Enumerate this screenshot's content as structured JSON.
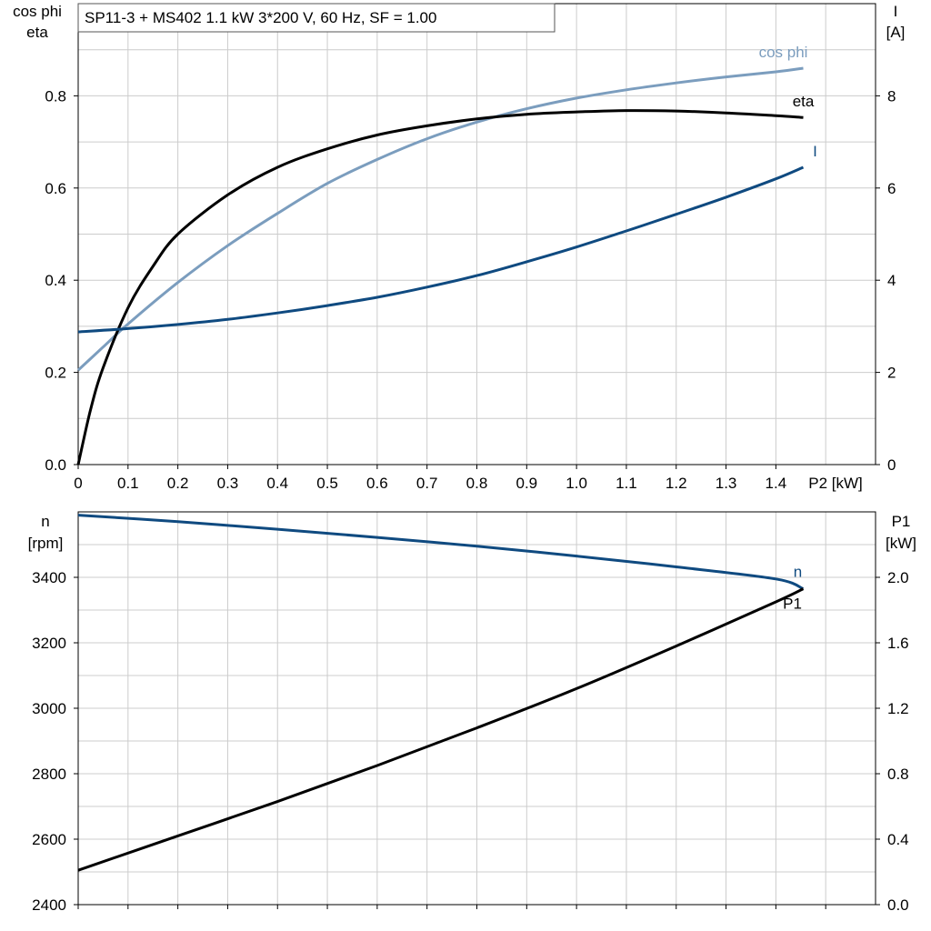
{
  "header": {
    "title": "SP11-3 + MS402   1.1 kW   3*200 V, 60 Hz, SF = 1.00"
  },
  "colors": {
    "eta": "#000000",
    "cos_phi": "#7b9dbe",
    "current": "#0f4a80",
    "speed": "#0f4a80",
    "p1": "#000000",
    "grid": "#cccccc"
  },
  "chart_data": [
    {
      "type": "line",
      "title": "",
      "xlabel": "P2 [kW]",
      "xlim": [
        0,
        1.6
      ],
      "x_ticks": [
        "0",
        "0.1",
        "0.2",
        "0.3",
        "0.4",
        "0.5",
        "0.6",
        "0.7",
        "0.8",
        "0.9",
        "1.0",
        "1.1",
        "1.2",
        "1.3",
        "1.4"
      ],
      "y_left": {
        "label_line1": "cos phi",
        "label_line2": "eta",
        "ylim": [
          0,
          1.0
        ],
        "ticks": [
          "0.0",
          "0.2",
          "0.4",
          "0.6",
          "0.8"
        ]
      },
      "y_right": {
        "label_line1": "I",
        "label_line2": "[A]",
        "ylim": [
          0,
          10
        ],
        "ticks": [
          "0",
          "2",
          "4",
          "6",
          "8"
        ]
      },
      "grid": true,
      "series": [
        {
          "name": "cos phi",
          "axis": "left",
          "x": [
            0,
            0.05,
            0.1,
            0.2,
            0.3,
            0.4,
            0.5,
            0.6,
            0.7,
            0.8,
            0.9,
            1.0,
            1.1,
            1.2,
            1.3,
            1.4,
            1.455
          ],
          "y": [
            0.205,
            0.255,
            0.305,
            0.395,
            0.475,
            0.545,
            0.61,
            0.662,
            0.707,
            0.743,
            0.772,
            0.795,
            0.813,
            0.828,
            0.841,
            0.852,
            0.86
          ]
        },
        {
          "name": "eta",
          "axis": "left",
          "x": [
            0,
            0.025,
            0.05,
            0.1,
            0.15,
            0.2,
            0.3,
            0.4,
            0.5,
            0.6,
            0.7,
            0.8,
            0.9,
            1.0,
            1.1,
            1.2,
            1.3,
            1.4,
            1.455
          ],
          "y": [
            0.0,
            0.12,
            0.21,
            0.34,
            0.43,
            0.5,
            0.585,
            0.645,
            0.685,
            0.715,
            0.735,
            0.75,
            0.76,
            0.765,
            0.768,
            0.767,
            0.763,
            0.757,
            0.753
          ]
        },
        {
          "name": "I",
          "axis": "right",
          "x": [
            0,
            0.1,
            0.2,
            0.3,
            0.4,
            0.5,
            0.6,
            0.7,
            0.8,
            0.9,
            1.0,
            1.1,
            1.2,
            1.3,
            1.4,
            1.455
          ],
          "y": [
            2.88,
            2.95,
            3.04,
            3.15,
            3.29,
            3.45,
            3.63,
            3.85,
            4.1,
            4.4,
            4.72,
            5.07,
            5.43,
            5.8,
            6.2,
            6.45
          ]
        }
      ]
    },
    {
      "type": "line",
      "title": "",
      "xlabel": "",
      "xlim": [
        0,
        1.6
      ],
      "y_left": {
        "label_line1": "n",
        "label_line2": "[rpm]",
        "ylim": [
          2400,
          3600
        ],
        "ticks": [
          "2400",
          "2600",
          "2800",
          "3000",
          "3200",
          "3400"
        ]
      },
      "y_right": {
        "label_line1": "P1",
        "label_line2": "[kW]",
        "ylim": [
          0.0,
          2.4
        ],
        "ticks": [
          "0.0",
          "0.4",
          "0.8",
          "1.2",
          "1.6",
          "2.0"
        ]
      },
      "grid": true,
      "series": [
        {
          "name": "n",
          "axis": "left",
          "x": [
            0,
            0.2,
            0.4,
            0.6,
            0.8,
            1.0,
            1.2,
            1.4,
            1.455
          ],
          "y": [
            3590,
            3570,
            3547,
            3522,
            3495,
            3465,
            3432,
            3395,
            3365
          ]
        },
        {
          "name": "P1",
          "axis": "right",
          "x": [
            0,
            0.2,
            0.4,
            0.6,
            0.8,
            1.0,
            1.2,
            1.4,
            1.455
          ],
          "y": [
            0.21,
            0.42,
            0.63,
            0.85,
            1.08,
            1.32,
            1.58,
            1.85,
            1.93
          ]
        }
      ]
    }
  ]
}
